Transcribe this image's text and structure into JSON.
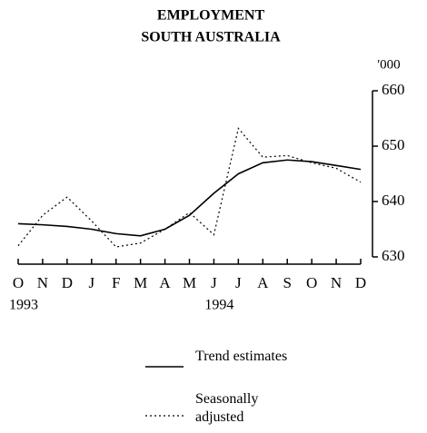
{
  "chart_data": {
    "type": "line",
    "title": "EMPLOYMENT",
    "subtitle": "SOUTH AUSTRALIA",
    "y_unit": "'000",
    "categories": [
      "O",
      "N",
      "D",
      "J",
      "F",
      "M",
      "A",
      "M",
      "J",
      "J",
      "A",
      "S",
      "O",
      "N",
      "D"
    ],
    "year_labels": [
      "1993",
      null,
      null,
      null,
      null,
      null,
      null,
      null,
      "1994",
      null,
      null,
      null,
      null,
      null,
      null
    ],
    "series": [
      {
        "name": "Trend estimates",
        "color": "#000",
        "dash": "solid",
        "values": [
          636,
          635.8,
          635.5,
          635,
          634.2,
          633.8,
          635,
          637.5,
          641.5,
          645,
          647,
          647.5,
          647.2,
          646.5,
          645.8
        ]
      },
      {
        "name": "Seasonally adjusted",
        "color": "#000",
        "dash": "dotted",
        "values": [
          632,
          637.5,
          640.8,
          636.5,
          631.8,
          632.5,
          635,
          638,
          634,
          653.2,
          648,
          648.3,
          647,
          646,
          643.5
        ]
      }
    ],
    "ylim": [
      630,
      660
    ],
    "yticks": [
      630,
      640,
      650,
      660
    ],
    "y_axis_side": "right"
  }
}
